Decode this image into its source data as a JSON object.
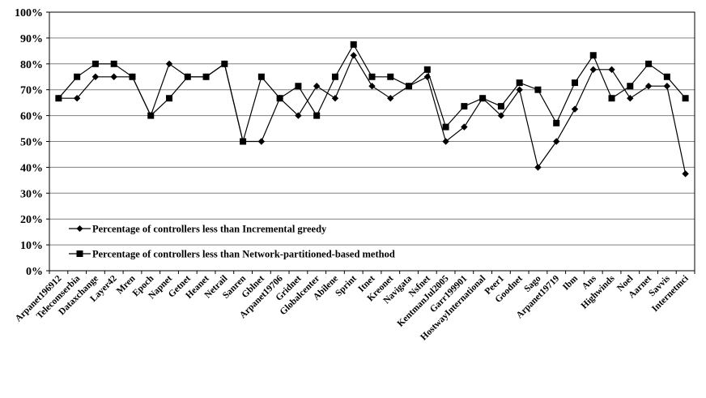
{
  "chart_data": {
    "type": "line",
    "title": "",
    "xlabel": "",
    "ylabel": "",
    "ylim": [
      0,
      100
    ],
    "yticks": [
      "0%",
      "10%",
      "20%",
      "30%",
      "40%",
      "50%",
      "60%",
      "70%",
      "80%",
      "90%",
      "100%"
    ],
    "grid": true,
    "legend_position": "bottom-left",
    "categories": [
      "Arpanet196912",
      "Telecomserbia",
      "Dataxchange",
      "Layer42",
      "Mren",
      "Epoch",
      "Napnet",
      "Getnet",
      "Heanet",
      "Netrail",
      "Sanren",
      "Gblnet",
      "Arpanet19706",
      "Gridnet",
      "Globalcenter",
      "Abilene",
      "Sprint",
      "Itnet",
      "Kreonet",
      "Navigata",
      "Nsfnet",
      "KentmanJul2005",
      "Garr199901",
      "HostwayInternational",
      "Peer1",
      "Goodnet",
      "Sago",
      "Arpanet19719",
      "Ibm",
      "Ans",
      "Highwinds",
      "Noel",
      "Aarnet",
      "Savvis",
      "Internetmci"
    ],
    "series": [
      {
        "name": "Percentage of controllers less than Incremental greedy",
        "marker": "diamond",
        "color": "#000000",
        "values": [
          66.7,
          66.7,
          75,
          75,
          75,
          60,
          80,
          75,
          75,
          80,
          50,
          50,
          66.7,
          60,
          71.4,
          66.7,
          83.3,
          71.4,
          66.7,
          71.4,
          75,
          50,
          55.6,
          66.7,
          60,
          70,
          40,
          50,
          62.5,
          77.8,
          77.8,
          66.7,
          71.4,
          71.4,
          37.5
        ]
      },
      {
        "name": "Percentage of controllers less than Network-partitioned-based method",
        "marker": "square",
        "color": "#000000",
        "values": [
          66.7,
          75,
          80,
          80,
          75,
          60,
          66.7,
          75,
          75,
          80,
          50,
          75,
          66.7,
          71.4,
          60,
          75,
          87.5,
          75,
          75,
          71.4,
          77.8,
          55.6,
          63.6,
          66.7,
          63.6,
          72.7,
          70,
          57.1,
          72.7,
          83.3,
          66.7,
          71.4,
          80,
          75,
          66.7
        ]
      }
    ]
  }
}
